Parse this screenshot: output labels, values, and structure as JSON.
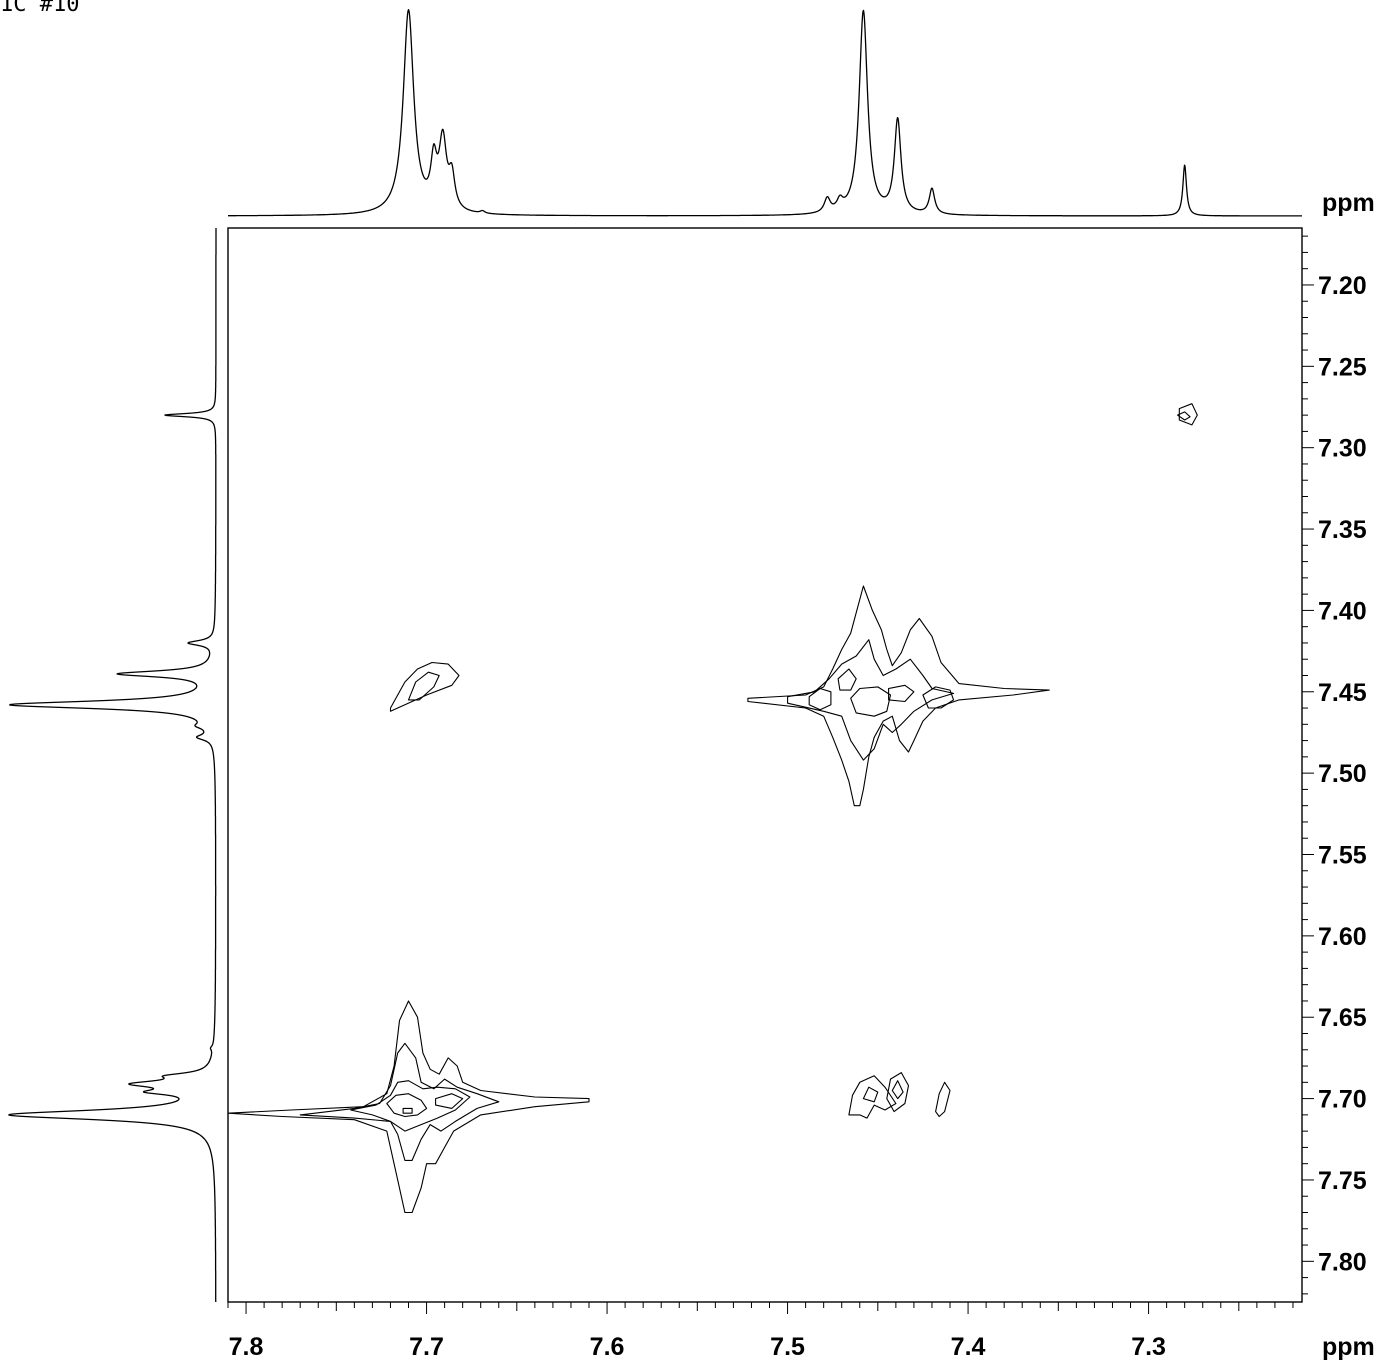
{
  "header_label": "1C #10",
  "chart_data": {
    "type": "contour",
    "x_axis": {
      "unit_label": "ppm",
      "range": [
        7.81,
        7.215
      ],
      "tick_labels": [
        "7.8",
        "7.7",
        "7.6",
        "7.5",
        "7.4",
        "7.3"
      ],
      "tick_values": [
        7.8,
        7.7,
        7.6,
        7.5,
        7.4,
        7.3
      ],
      "minor_tick_step": 0.01
    },
    "y_axis": {
      "unit_label": "ppm",
      "range": [
        7.165,
        7.825
      ],
      "tick_labels": [
        "7.20",
        "7.25",
        "7.30",
        "7.35",
        "7.40",
        "7.45",
        "7.50",
        "7.55",
        "7.60",
        "7.65",
        "7.70",
        "7.75",
        "7.80"
      ],
      "tick_values": [
        7.2,
        7.25,
        7.3,
        7.35,
        7.4,
        7.45,
        7.5,
        7.55,
        7.6,
        7.65,
        7.7,
        7.75,
        7.8
      ],
      "minor_tick_step": 0.01
    },
    "projection_peaks": [
      {
        "ppm": 7.71,
        "height": 1.0,
        "width": 0.0035
      },
      {
        "ppm": 7.696,
        "height": 0.22,
        "width": 0.002
      },
      {
        "ppm": 7.691,
        "height": 0.34,
        "width": 0.0025
      },
      {
        "ppm": 7.686,
        "height": 0.16,
        "width": 0.002
      },
      {
        "ppm": 7.669,
        "height": 0.012,
        "width": 0.0015
      },
      {
        "ppm": 7.478,
        "height": 0.07,
        "width": 0.002
      },
      {
        "ppm": 7.471,
        "height": 0.05,
        "width": 0.002
      },
      {
        "ppm": 7.458,
        "height": 1.0,
        "width": 0.0028
      },
      {
        "ppm": 7.439,
        "height": 0.46,
        "width": 0.0022
      },
      {
        "ppm": 7.42,
        "height": 0.125,
        "width": 0.0018
      },
      {
        "ppm": 7.28,
        "height": 0.25,
        "width": 0.0012
      }
    ],
    "cross_peaks": [
      {
        "x": 7.71,
        "y": 7.7,
        "label": "diagonal"
      },
      {
        "x": 7.458,
        "y": 7.452,
        "label": "diagonal"
      },
      {
        "x": 7.28,
        "y": 7.28,
        "label": "diagonal"
      },
      {
        "x": 7.7,
        "y": 7.447,
        "label": "cross"
      },
      {
        "x": 7.455,
        "y": 7.698,
        "label": "cross"
      },
      {
        "x": 7.415,
        "y": 7.698,
        "label": "cross"
      }
    ],
    "contours": [
      {
        "points": [
          [
            7.81,
            7.709
          ],
          [
            7.775,
            7.707
          ],
          [
            7.735,
            7.705
          ],
          [
            7.722,
            7.697
          ],
          [
            7.718,
            7.68
          ],
          [
            7.715,
            7.652
          ],
          [
            7.71,
            7.64
          ],
          [
            7.705,
            7.65
          ],
          [
            7.702,
            7.672
          ],
          [
            7.698,
            7.682
          ],
          [
            7.693,
            7.685
          ],
          [
            7.688,
            7.675
          ],
          [
            7.683,
            7.68
          ],
          [
            7.68,
            7.69
          ],
          [
            7.67,
            7.695
          ],
          [
            7.64,
            7.699
          ],
          [
            7.61,
            7.7
          ],
          [
            7.61,
            7.702
          ],
          [
            7.64,
            7.705
          ],
          [
            7.67,
            7.71
          ],
          [
            7.685,
            7.72
          ],
          [
            7.69,
            7.73
          ],
          [
            7.695,
            7.74
          ],
          [
            7.7,
            7.74
          ],
          [
            7.703,
            7.755
          ],
          [
            7.708,
            7.77
          ],
          [
            7.712,
            7.77
          ],
          [
            7.716,
            7.75
          ],
          [
            7.722,
            7.72
          ],
          [
            7.74,
            7.713
          ],
          [
            7.78,
            7.711
          ],
          [
            7.81,
            7.709
          ]
        ]
      },
      {
        "points": [
          [
            7.77,
            7.71
          ],
          [
            7.74,
            7.706
          ],
          [
            7.726,
            7.703
          ],
          [
            7.72,
            7.692
          ],
          [
            7.716,
            7.672
          ],
          [
            7.712,
            7.666
          ],
          [
            7.706,
            7.675
          ],
          [
            7.703,
            7.69
          ],
          [
            7.696,
            7.694
          ],
          [
            7.69,
            7.688
          ],
          [
            7.683,
            7.693
          ],
          [
            7.672,
            7.697
          ],
          [
            7.66,
            7.702
          ],
          [
            7.672,
            7.706
          ],
          [
            7.684,
            7.714
          ],
          [
            7.692,
            7.72
          ],
          [
            7.698,
            7.716
          ],
          [
            7.703,
            7.725
          ],
          [
            7.708,
            7.738
          ],
          [
            7.712,
            7.738
          ],
          [
            7.716,
            7.722
          ],
          [
            7.72,
            7.714
          ],
          [
            7.74,
            7.712
          ],
          [
            7.77,
            7.71
          ]
        ]
      },
      {
        "points": [
          [
            7.742,
            7.707
          ],
          [
            7.728,
            7.704
          ],
          [
            7.72,
            7.698
          ],
          [
            7.716,
            7.69
          ],
          [
            7.71,
            7.689
          ],
          [
            7.702,
            7.694
          ],
          [
            7.694,
            7.693
          ],
          [
            7.684,
            7.694
          ],
          [
            7.676,
            7.699
          ],
          [
            7.684,
            7.707
          ],
          [
            7.694,
            7.712
          ],
          [
            7.703,
            7.716
          ],
          [
            7.712,
            7.72
          ],
          [
            7.72,
            7.714
          ],
          [
            7.73,
            7.71
          ],
          [
            7.742,
            7.707
          ]
        ]
      },
      {
        "points": [
          [
            7.722,
            7.703
          ],
          [
            7.717,
            7.698
          ],
          [
            7.71,
            7.697
          ],
          [
            7.703,
            7.701
          ],
          [
            7.7,
            7.706
          ],
          [
            7.705,
            7.71
          ],
          [
            7.712,
            7.711
          ],
          [
            7.718,
            7.709
          ],
          [
            7.722,
            7.703
          ]
        ]
      },
      {
        "points": [
          [
            7.695,
            7.7
          ],
          [
            7.686,
            7.697
          ],
          [
            7.68,
            7.7
          ],
          [
            7.686,
            7.706
          ],
          [
            7.695,
            7.704
          ],
          [
            7.695,
            7.7
          ]
        ]
      },
      {
        "points": [
          [
            7.713,
            7.706
          ],
          [
            7.708,
            7.706
          ],
          [
            7.708,
            7.709
          ],
          [
            7.713,
            7.709
          ],
          [
            7.713,
            7.706
          ]
        ]
      },
      {
        "points": [
          [
            7.522,
            7.454
          ],
          [
            7.49,
            7.452
          ],
          [
            7.48,
            7.447
          ],
          [
            7.475,
            7.436
          ],
          [
            7.47,
            7.424
          ],
          [
            7.465,
            7.414
          ],
          [
            7.458,
            7.385
          ],
          [
            7.453,
            7.4
          ],
          [
            7.448,
            7.412
          ],
          [
            7.445,
            7.424
          ],
          [
            7.442,
            7.434
          ],
          [
            7.437,
            7.426
          ],
          [
            7.432,
            7.412
          ],
          [
            7.427,
            7.405
          ],
          [
            7.42,
            7.416
          ],
          [
            7.415,
            7.432
          ],
          [
            7.405,
            7.445
          ],
          [
            7.38,
            7.448
          ],
          [
            7.355,
            7.449
          ],
          [
            7.375,
            7.452
          ],
          [
            7.405,
            7.455
          ],
          [
            7.418,
            7.46
          ],
          [
            7.425,
            7.468
          ],
          [
            7.43,
            7.48
          ],
          [
            7.433,
            7.487
          ],
          [
            7.438,
            7.48
          ],
          [
            7.442,
            7.465
          ],
          [
            7.447,
            7.468
          ],
          [
            7.452,
            7.478
          ],
          [
            7.455,
            7.49
          ],
          [
            7.458,
            7.51
          ],
          [
            7.46,
            7.52
          ],
          [
            7.463,
            7.52
          ],
          [
            7.466,
            7.505
          ],
          [
            7.47,
            7.492
          ],
          [
            7.475,
            7.478
          ],
          [
            7.48,
            7.465
          ],
          [
            7.49,
            7.46
          ],
          [
            7.522,
            7.456
          ],
          [
            7.522,
            7.454
          ]
        ]
      },
      {
        "points": [
          [
            7.5,
            7.453
          ],
          [
            7.485,
            7.45
          ],
          [
            7.477,
            7.442
          ],
          [
            7.47,
            7.433
          ],
          [
            7.462,
            7.428
          ],
          [
            7.455,
            7.418
          ],
          [
            7.452,
            7.43
          ],
          [
            7.447,
            7.44
          ],
          [
            7.44,
            7.436
          ],
          [
            7.432,
            7.43
          ],
          [
            7.425,
            7.44
          ],
          [
            7.42,
            7.448
          ],
          [
            7.408,
            7.451
          ],
          [
            7.42,
            7.455
          ],
          [
            7.43,
            7.462
          ],
          [
            7.437,
            7.47
          ],
          [
            7.442,
            7.475
          ],
          [
            7.447,
            7.47
          ],
          [
            7.452,
            7.485
          ],
          [
            7.458,
            7.492
          ],
          [
            7.465,
            7.48
          ],
          [
            7.47,
            7.465
          ],
          [
            7.48,
            7.462
          ],
          [
            7.5,
            7.457
          ],
          [
            7.5,
            7.453
          ]
        ]
      },
      {
        "points": [
          [
            7.488,
            7.453
          ],
          [
            7.482,
            7.448
          ],
          [
            7.476,
            7.45
          ],
          [
            7.476,
            7.458
          ],
          [
            7.482,
            7.461
          ],
          [
            7.488,
            7.458
          ],
          [
            7.488,
            7.453
          ]
        ]
      },
      {
        "points": [
          [
            7.472,
            7.442
          ],
          [
            7.466,
            7.436
          ],
          [
            7.462,
            7.442
          ],
          [
            7.465,
            7.449
          ],
          [
            7.471,
            7.449
          ],
          [
            7.472,
            7.442
          ]
        ]
      },
      {
        "points": [
          [
            7.465,
            7.454
          ],
          [
            7.46,
            7.448
          ],
          [
            7.45,
            7.447
          ],
          [
            7.443,
            7.452
          ],
          [
            7.445,
            7.462
          ],
          [
            7.452,
            7.465
          ],
          [
            7.462,
            7.463
          ],
          [
            7.465,
            7.454
          ]
        ]
      },
      {
        "points": [
          [
            7.444,
            7.448
          ],
          [
            7.435,
            7.446
          ],
          [
            7.43,
            7.45
          ],
          [
            7.435,
            7.456
          ],
          [
            7.444,
            7.455
          ],
          [
            7.444,
            7.448
          ]
        ]
      },
      {
        "points": [
          [
            7.425,
            7.452
          ],
          [
            7.418,
            7.447
          ],
          [
            7.41,
            7.449
          ],
          [
            7.408,
            7.455
          ],
          [
            7.415,
            7.46
          ],
          [
            7.422,
            7.46
          ],
          [
            7.425,
            7.452
          ]
        ]
      },
      {
        "points": [
          [
            7.72,
            7.46
          ],
          [
            7.712,
            7.444
          ],
          [
            7.705,
            7.436
          ],
          [
            7.697,
            7.432
          ],
          [
            7.688,
            7.433
          ],
          [
            7.682,
            7.44
          ],
          [
            7.686,
            7.446
          ],
          [
            7.7,
            7.452
          ],
          [
            7.714,
            7.459
          ],
          [
            7.72,
            7.462
          ],
          [
            7.72,
            7.46
          ]
        ]
      },
      {
        "points": [
          [
            7.71,
            7.455
          ],
          [
            7.706,
            7.444
          ],
          [
            7.699,
            7.438
          ],
          [
            7.693,
            7.44
          ],
          [
            7.696,
            7.447
          ],
          [
            7.704,
            7.455
          ],
          [
            7.71,
            7.455
          ]
        ]
      },
      {
        "points": [
          [
            7.466,
            7.71
          ],
          [
            7.464,
            7.698
          ],
          [
            7.46,
            7.69
          ],
          [
            7.452,
            7.686
          ],
          [
            7.446,
            7.693
          ],
          [
            7.44,
            7.703
          ],
          [
            7.446,
            7.707
          ],
          [
            7.452,
            7.704
          ],
          [
            7.456,
            7.712
          ],
          [
            7.46,
            7.71
          ],
          [
            7.466,
            7.71
          ]
        ]
      },
      {
        "points": [
          [
            7.441,
            7.708
          ],
          [
            7.445,
            7.7
          ],
          [
            7.443,
            7.688
          ],
          [
            7.437,
            7.684
          ],
          [
            7.433,
            7.692
          ],
          [
            7.435,
            7.703
          ],
          [
            7.441,
            7.708
          ]
        ]
      },
      {
        "points": [
          [
            7.458,
            7.7
          ],
          [
            7.455,
            7.693
          ],
          [
            7.45,
            7.696
          ],
          [
            7.452,
            7.702
          ],
          [
            7.458,
            7.7
          ]
        ]
      },
      {
        "points": [
          [
            7.442,
            7.695
          ],
          [
            7.439,
            7.689
          ],
          [
            7.436,
            7.696
          ],
          [
            7.439,
            7.7
          ],
          [
            7.442,
            7.695
          ]
        ]
      },
      {
        "points": [
          [
            7.418,
            7.708
          ],
          [
            7.416,
            7.697
          ],
          [
            7.413,
            7.69
          ],
          [
            7.41,
            7.695
          ],
          [
            7.413,
            7.708
          ],
          [
            7.416,
            7.711
          ],
          [
            7.418,
            7.708
          ]
        ]
      },
      {
        "points": [
          [
            7.283,
            7.283
          ],
          [
            7.283,
            7.276
          ],
          [
            7.276,
            7.273
          ],
          [
            7.273,
            7.28
          ],
          [
            7.276,
            7.286
          ],
          [
            7.283,
            7.283
          ]
        ]
      },
      {
        "points": [
          [
            7.284,
            7.28
          ],
          [
            7.28,
            7.278
          ],
          [
            7.277,
            7.281
          ],
          [
            7.28,
            7.283
          ],
          [
            7.284,
            7.28
          ]
        ]
      }
    ]
  }
}
